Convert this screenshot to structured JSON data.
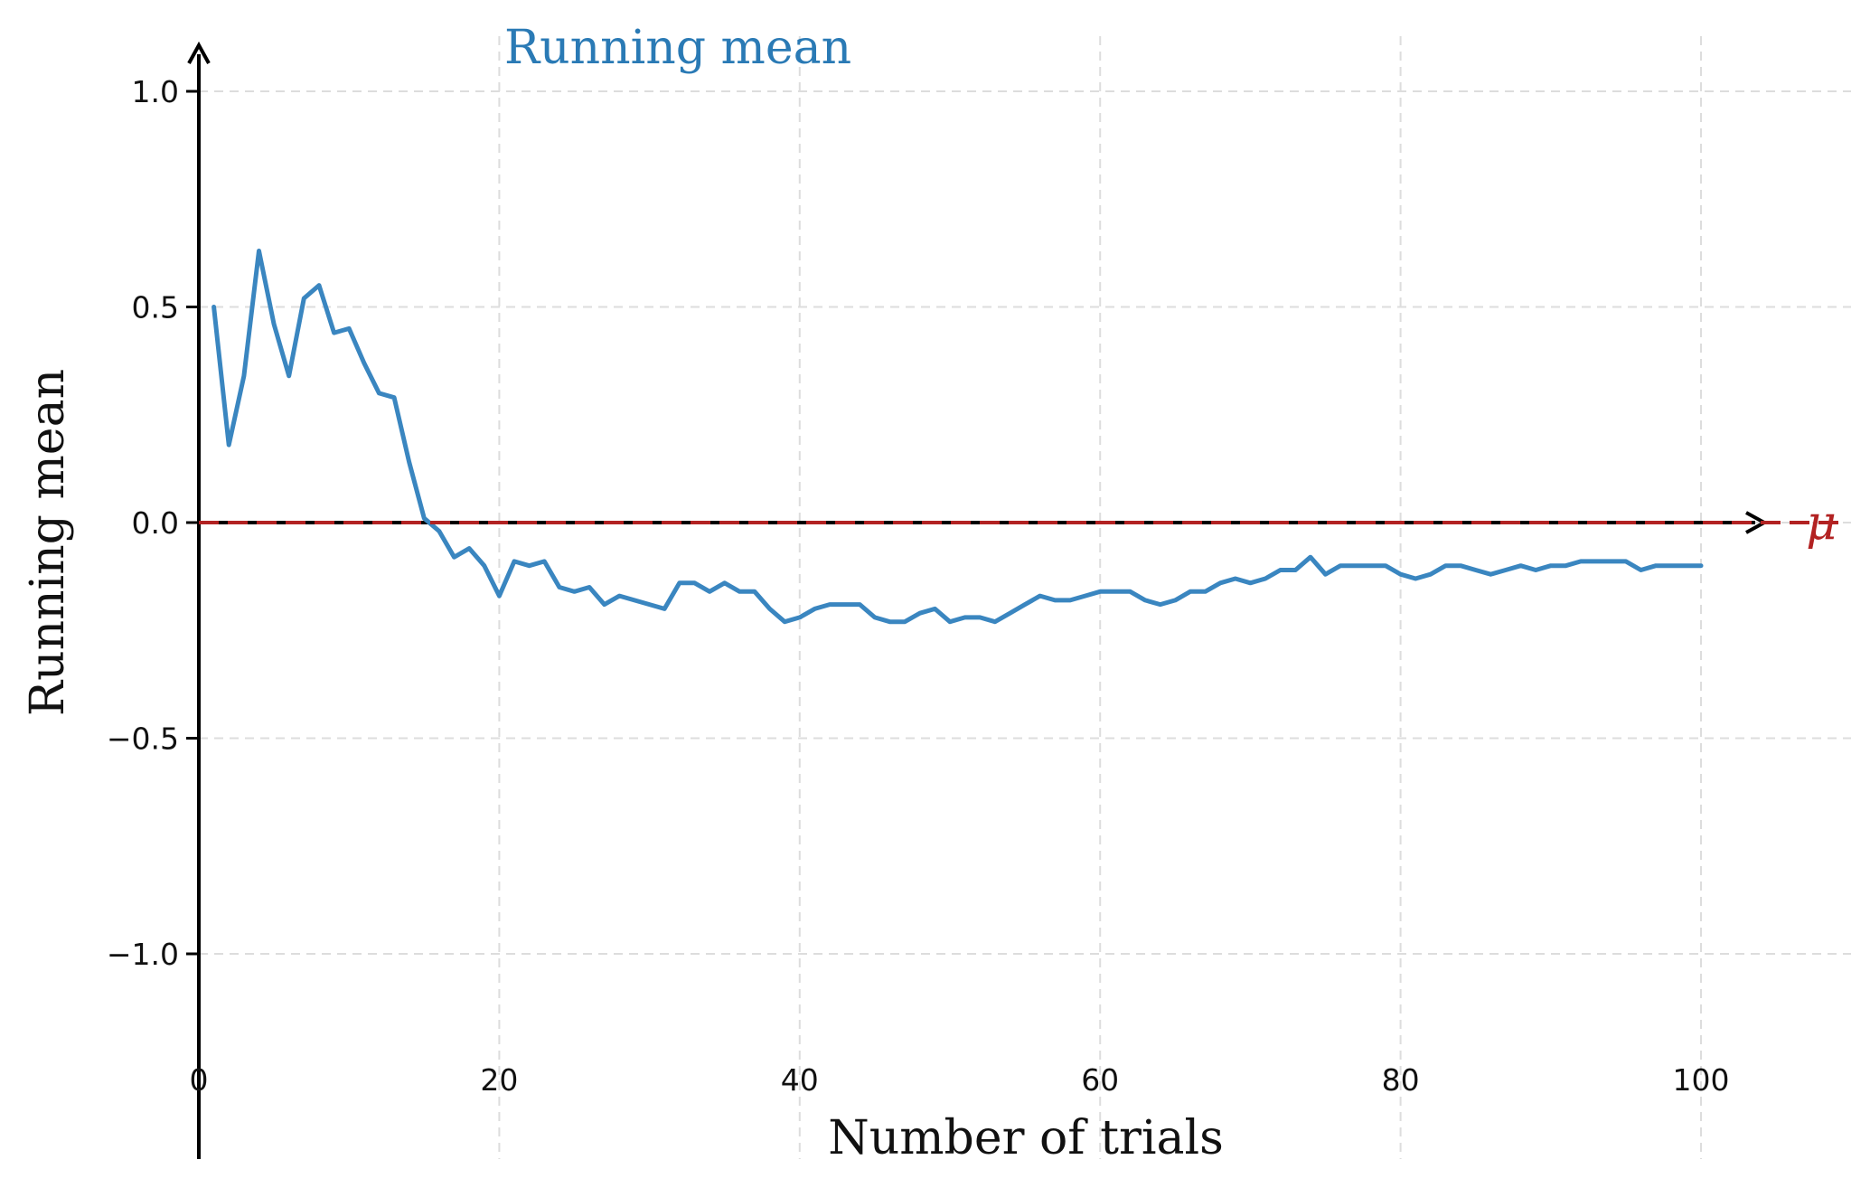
{
  "chart_data": {
    "type": "line",
    "title": "",
    "xlabel": "Number of trials",
    "ylabel": "Running mean",
    "xlim": [
      0,
      110
    ],
    "ylim": [
      -1.2,
      1.1
    ],
    "xticks": [
      0,
      20,
      40,
      60,
      80,
      100
    ],
    "yticks": [
      1.0,
      0.5,
      0.0,
      -0.5,
      -1.0
    ],
    "xtick_labels": [
      "0",
      "20",
      "40",
      "60",
      "80",
      "100"
    ],
    "ytick_labels": [
      "1.0",
      "0.5",
      "0.0",
      "−0.5",
      "−1.0"
    ],
    "grid": true,
    "series": [
      {
        "name": "Running mean",
        "color": "#3a86c0",
        "x": [
          1,
          2,
          3,
          4,
          5,
          6,
          7,
          8,
          9,
          10,
          11,
          12,
          13,
          14,
          15,
          16,
          17,
          18,
          19,
          20,
          21,
          22,
          23,
          24,
          25,
          26,
          27,
          28,
          29,
          30,
          31,
          32,
          33,
          34,
          35,
          36,
          37,
          38,
          39,
          40,
          41,
          42,
          43,
          44,
          45,
          46,
          47,
          48,
          49,
          50,
          51,
          52,
          53,
          54,
          55,
          56,
          57,
          58,
          59,
          60,
          61,
          62,
          63,
          64,
          65,
          66,
          67,
          68,
          69,
          70,
          71,
          72,
          73,
          74,
          75,
          76,
          77,
          78,
          79,
          80,
          81,
          82,
          83,
          84,
          85,
          86,
          87,
          88,
          89,
          90,
          91,
          92,
          93,
          94,
          95,
          96,
          97,
          98,
          99,
          100
        ],
        "y": [
          0.5,
          0.18,
          0.34,
          0.63,
          0.46,
          0.34,
          0.52,
          0.55,
          0.44,
          0.45,
          0.37,
          0.3,
          0.29,
          0.14,
          0.01,
          -0.02,
          -0.08,
          -0.06,
          -0.1,
          -0.17,
          -0.09,
          -0.1,
          -0.09,
          -0.15,
          -0.16,
          -0.15,
          -0.19,
          -0.17,
          -0.18,
          -0.19,
          -0.2,
          -0.14,
          -0.14,
          -0.16,
          -0.14,
          -0.16,
          -0.16,
          -0.2,
          -0.23,
          -0.22,
          -0.2,
          -0.19,
          -0.19,
          -0.19,
          -0.22,
          -0.23,
          -0.23,
          -0.21,
          -0.2,
          -0.23,
          -0.22,
          -0.22,
          -0.23,
          -0.21,
          -0.19,
          -0.17,
          -0.18,
          -0.18,
          -0.17,
          -0.16,
          -0.16,
          -0.16,
          -0.18,
          -0.19,
          -0.18,
          -0.16,
          -0.16,
          -0.14,
          -0.13,
          -0.14,
          -0.13,
          -0.11,
          -0.11,
          -0.08,
          -0.12,
          -0.1,
          -0.1,
          -0.1,
          -0.1,
          -0.12,
          -0.13,
          -0.12,
          -0.1,
          -0.1,
          -0.11,
          -0.12,
          -0.11,
          -0.1,
          -0.11,
          -0.1,
          -0.1,
          -0.09,
          -0.09,
          -0.09,
          -0.09,
          -0.11,
          -0.1,
          -0.1,
          -0.1,
          -0.1
        ]
      }
    ],
    "reference": {
      "label": "μ",
      "value": 0.0,
      "color": "#b22222"
    },
    "colors": {
      "axis": "#000000",
      "grid": "#dddddd"
    }
  }
}
